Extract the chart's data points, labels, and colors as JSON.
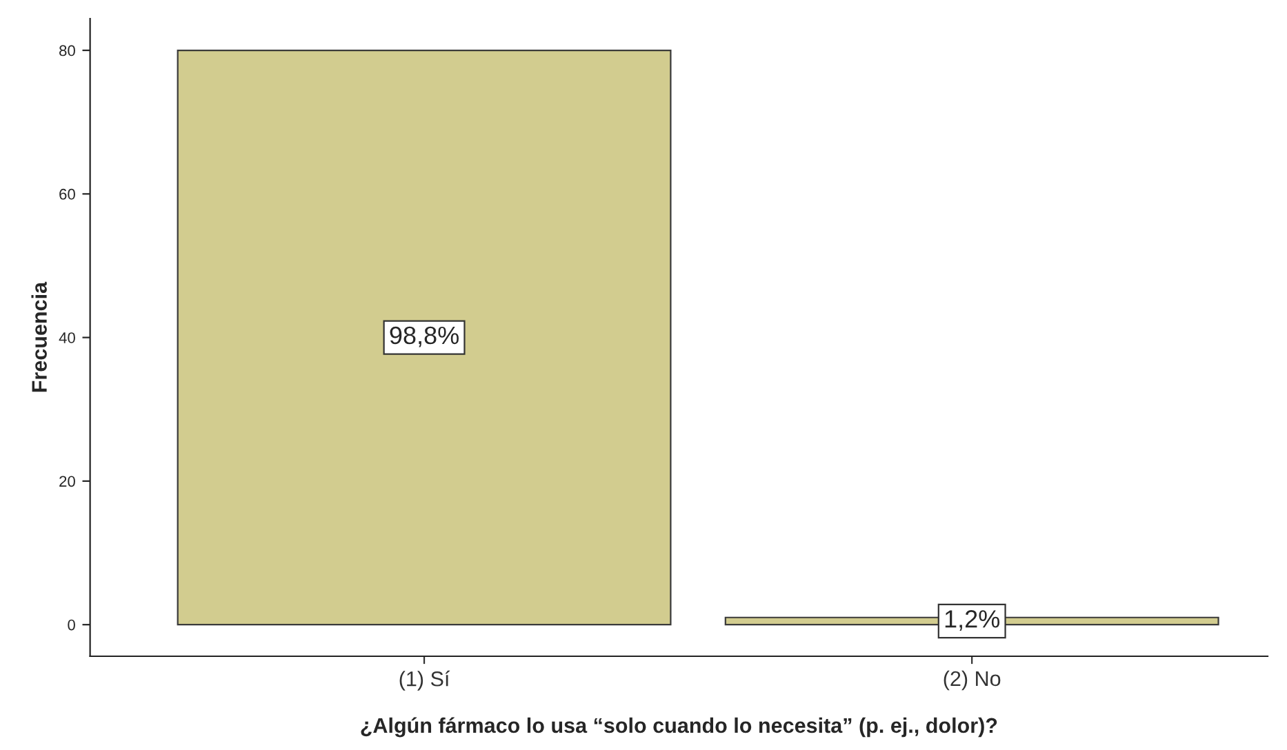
{
  "chart_data": {
    "type": "bar",
    "xlabel": "¿Algún fármaco lo usa “solo cuando lo necesita” (p. ej., dolor)?",
    "ylabel": "Frecuencia",
    "categories": [
      "(1) Sí",
      "(2) No"
    ],
    "values": [
      80,
      1
    ],
    "annotations": [
      "98,8%",
      "1,2%"
    ],
    "color": "#d2cc8f",
    "ylim": [
      -4.4,
      84.4
    ],
    "yticks": [
      0,
      20,
      40,
      60,
      80
    ],
    "grid": false
  }
}
